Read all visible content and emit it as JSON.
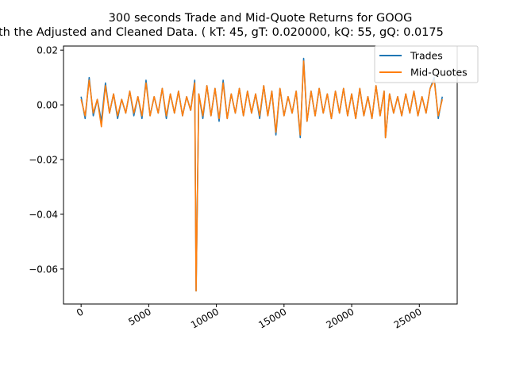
{
  "chart_data": {
    "type": "line",
    "title": "300 seconds Trade and Mid-Quote Returns for GOOG",
    "subtitle": "th the Adjusted and Cleaned Data. ( kT: 45, gT: 0.020000, kQ: 55, gQ: 0.0175",
    "xlabel": "",
    "ylabel": "",
    "xlim": [
      -1300,
      27800
    ],
    "ylim": [
      -0.0728,
      0.0215
    ],
    "xticks": [
      0,
      5000,
      10000,
      15000,
      20000,
      25000
    ],
    "xtick_labels": [
      "0",
      "5000",
      "10000",
      "15000",
      "20000",
      "25000"
    ],
    "yticks": [
      0.02,
      0.0,
      -0.02,
      -0.04,
      -0.06
    ],
    "ytick_labels": [
      "0.02",
      "0.00",
      "−0.02",
      "−0.04",
      "−0.06"
    ],
    "grid": false,
    "legend_position": "top-right",
    "series": [
      {
        "name": "Trades",
        "color": "#1f77b4",
        "points": [
          [
            0,
            0.003
          ],
          [
            300,
            -0.005
          ],
          [
            600,
            0.01
          ],
          [
            900,
            -0.004
          ],
          [
            1200,
            0.002
          ],
          [
            1500,
            -0.006
          ],
          [
            1800,
            0.008
          ],
          [
            2100,
            -0.003
          ],
          [
            2400,
            0.004
          ],
          [
            2700,
            -0.005
          ],
          [
            3000,
            0.002
          ],
          [
            3300,
            -0.003
          ],
          [
            3600,
            0.005
          ],
          [
            3900,
            -0.004
          ],
          [
            4200,
            0.003
          ],
          [
            4500,
            -0.005
          ],
          [
            4800,
            0.009
          ],
          [
            5100,
            -0.004
          ],
          [
            5400,
            0.003
          ],
          [
            5700,
            -0.003
          ],
          [
            6000,
            0.006
          ],
          [
            6300,
            -0.005
          ],
          [
            6600,
            0.004
          ],
          [
            6900,
            -0.003
          ],
          [
            7200,
            0.005
          ],
          [
            7500,
            -0.004
          ],
          [
            7800,
            0.003
          ],
          [
            8100,
            -0.002
          ],
          [
            8400,
            0.009
          ],
          [
            8500,
            -0.068
          ],
          [
            8700,
            0.004
          ],
          [
            9000,
            -0.005
          ],
          [
            9300,
            0.007
          ],
          [
            9600,
            -0.004
          ],
          [
            9900,
            0.006
          ],
          [
            10200,
            -0.006
          ],
          [
            10500,
            0.009
          ],
          [
            10800,
            -0.005
          ],
          [
            11100,
            0.004
          ],
          [
            11400,
            -0.003
          ],
          [
            11700,
            0.006
          ],
          [
            12000,
            -0.004
          ],
          [
            12300,
            0.005
          ],
          [
            12600,
            -0.003
          ],
          [
            12900,
            0.004
          ],
          [
            13200,
            -0.005
          ],
          [
            13500,
            0.007
          ],
          [
            13800,
            -0.004
          ],
          [
            14100,
            0.005
          ],
          [
            14400,
            -0.011
          ],
          [
            14700,
            0.006
          ],
          [
            15000,
            -0.004
          ],
          [
            15300,
            0.003
          ],
          [
            15600,
            -0.003
          ],
          [
            15900,
            0.005
          ],
          [
            16200,
            -0.012
          ],
          [
            16450,
            0.017
          ],
          [
            16700,
            -0.006
          ],
          [
            17000,
            0.005
          ],
          [
            17300,
            -0.004
          ],
          [
            17600,
            0.006
          ],
          [
            17900,
            -0.003
          ],
          [
            18200,
            0.004
          ],
          [
            18500,
            -0.005
          ],
          [
            18800,
            0.005
          ],
          [
            19100,
            -0.003
          ],
          [
            19400,
            0.006
          ],
          [
            19700,
            -0.004
          ],
          [
            20000,
            0.004
          ],
          [
            20300,
            -0.005
          ],
          [
            20600,
            0.006
          ],
          [
            20900,
            -0.004
          ],
          [
            21200,
            0.003
          ],
          [
            21500,
            -0.005
          ],
          [
            21800,
            0.007
          ],
          [
            22100,
            -0.004
          ],
          [
            22400,
            0.005
          ],
          [
            22500,
            -0.012
          ],
          [
            22800,
            0.004
          ],
          [
            23100,
            -0.003
          ],
          [
            23400,
            0.003
          ],
          [
            23700,
            -0.004
          ],
          [
            24000,
            0.004
          ],
          [
            24300,
            -0.003
          ],
          [
            24600,
            0.005
          ],
          [
            24900,
            -0.004
          ],
          [
            25200,
            0.003
          ],
          [
            25500,
            -0.003
          ],
          [
            25800,
            0.006
          ],
          [
            26100,
            0.01
          ],
          [
            26400,
            -0.005
          ],
          [
            26700,
            0.003
          ]
        ]
      },
      {
        "name": "Mid-Quotes",
        "color": "#ff7f0e",
        "points": [
          [
            0,
            0.002
          ],
          [
            300,
            -0.004
          ],
          [
            600,
            0.009
          ],
          [
            900,
            -0.003
          ],
          [
            1200,
            0.002
          ],
          [
            1500,
            -0.008
          ],
          [
            1800,
            0.007
          ],
          [
            2100,
            -0.003
          ],
          [
            2400,
            0.004
          ],
          [
            2700,
            -0.004
          ],
          [
            3000,
            0.002
          ],
          [
            3300,
            -0.003
          ],
          [
            3600,
            0.005
          ],
          [
            3900,
            -0.003
          ],
          [
            4200,
            0.003
          ],
          [
            4500,
            -0.004
          ],
          [
            4800,
            0.008
          ],
          [
            5100,
            -0.004
          ],
          [
            5400,
            0.003
          ],
          [
            5700,
            -0.003
          ],
          [
            6000,
            0.006
          ],
          [
            6300,
            -0.004
          ],
          [
            6600,
            0.004
          ],
          [
            6900,
            -0.003
          ],
          [
            7200,
            0.005
          ],
          [
            7500,
            -0.004
          ],
          [
            7800,
            0.003
          ],
          [
            8100,
            -0.002
          ],
          [
            8400,
            0.008
          ],
          [
            8500,
            -0.068
          ],
          [
            8700,
            0.004
          ],
          [
            9000,
            -0.004
          ],
          [
            9300,
            0.007
          ],
          [
            9600,
            -0.004
          ],
          [
            9900,
            0.006
          ],
          [
            10200,
            -0.005
          ],
          [
            10500,
            0.008
          ],
          [
            10800,
            -0.005
          ],
          [
            11100,
            0.004
          ],
          [
            11400,
            -0.003
          ],
          [
            11700,
            0.006
          ],
          [
            12000,
            -0.004
          ],
          [
            12300,
            0.005
          ],
          [
            12600,
            -0.003
          ],
          [
            12900,
            0.004
          ],
          [
            13200,
            -0.004
          ],
          [
            13500,
            0.007
          ],
          [
            13800,
            -0.004
          ],
          [
            14100,
            0.005
          ],
          [
            14400,
            -0.01
          ],
          [
            14700,
            0.006
          ],
          [
            15000,
            -0.004
          ],
          [
            15300,
            0.003
          ],
          [
            15600,
            -0.003
          ],
          [
            15900,
            0.005
          ],
          [
            16200,
            -0.011
          ],
          [
            16450,
            0.016
          ],
          [
            16700,
            -0.006
          ],
          [
            17000,
            0.005
          ],
          [
            17300,
            -0.004
          ],
          [
            17600,
            0.006
          ],
          [
            17900,
            -0.003
          ],
          [
            18200,
            0.004
          ],
          [
            18500,
            -0.005
          ],
          [
            18800,
            0.005
          ],
          [
            19100,
            -0.003
          ],
          [
            19400,
            0.006
          ],
          [
            19700,
            -0.004
          ],
          [
            20000,
            0.004
          ],
          [
            20300,
            -0.005
          ],
          [
            20600,
            0.006
          ],
          [
            20900,
            -0.004
          ],
          [
            21200,
            0.003
          ],
          [
            21500,
            -0.005
          ],
          [
            21800,
            0.007
          ],
          [
            22100,
            -0.004
          ],
          [
            22400,
            0.005
          ],
          [
            22500,
            -0.012
          ],
          [
            22800,
            0.004
          ],
          [
            23100,
            -0.003
          ],
          [
            23400,
            0.003
          ],
          [
            23700,
            -0.004
          ],
          [
            24000,
            0.004
          ],
          [
            24300,
            -0.003
          ],
          [
            24600,
            0.005
          ],
          [
            24900,
            -0.004
          ],
          [
            25200,
            0.003
          ],
          [
            25500,
            -0.003
          ],
          [
            25800,
            0.006
          ],
          [
            26100,
            0.009
          ],
          [
            26400,
            -0.004
          ],
          [
            26700,
            0.002
          ]
        ]
      }
    ]
  }
}
